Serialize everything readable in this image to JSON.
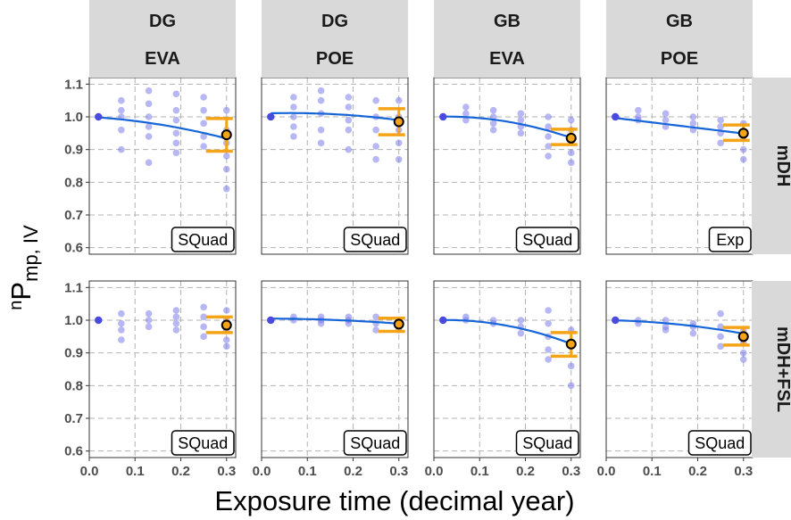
{
  "chart_data": {
    "type": "scatter",
    "description_labels": {
      "xlabel": "Exposure time (decimal year)",
      "ylabel_prefix": "n",
      "ylabel_main": "P",
      "ylabel_sub": "mp, IV"
    },
    "xlim": [
      0,
      0.32
    ],
    "ylim": [
      0.58,
      1.12
    ],
    "x_ticks": [
      0.0,
      0.1,
      0.2,
      0.3
    ],
    "x_tick_labels": [
      "0.0",
      "0.1",
      "0.2",
      "0.3"
    ],
    "y_ticks": [
      0.6,
      0.7,
      0.8,
      0.9,
      1.0,
      1.1
    ],
    "y_tick_labels": [
      "0.6",
      "0.7",
      "0.8",
      "0.9",
      "1.0",
      "1.1"
    ],
    "columns": [
      {
        "top": "DG",
        "bottom": "EVA"
      },
      {
        "top": "DG",
        "bottom": "POE"
      },
      {
        "top": "GB",
        "bottom": "EVA"
      },
      {
        "top": "GB",
        "bottom": "POE"
      }
    ],
    "rows": [
      "mDH",
      "mDH+FSL"
    ],
    "colors": {
      "points": "#7b7bea",
      "fit": "#1565d8",
      "interval": "#f5a418",
      "strip_bg": "#d9d9d9",
      "grid": "#b3b3b3"
    },
    "panels": [
      {
        "row": 0,
        "col": 0,
        "model": "SQuad",
        "points": [
          [
            0.02,
            1.0
          ],
          [
            0.07,
            1.05
          ],
          [
            0.07,
            1.02
          ],
          [
            0.07,
            1.0
          ],
          [
            0.07,
            0.96
          ],
          [
            0.07,
            0.9
          ],
          [
            0.13,
            1.08
          ],
          [
            0.13,
            1.04
          ],
          [
            0.13,
            1.0
          ],
          [
            0.13,
            0.97
          ],
          [
            0.13,
            0.94
          ],
          [
            0.13,
            0.86
          ],
          [
            0.19,
            1.07
          ],
          [
            0.19,
            1.02
          ],
          [
            0.19,
            0.99
          ],
          [
            0.19,
            0.95
          ],
          [
            0.19,
            0.92
          ],
          [
            0.19,
            0.89
          ],
          [
            0.25,
            1.06
          ],
          [
            0.25,
            1.02
          ],
          [
            0.25,
            0.98
          ],
          [
            0.25,
            0.94
          ],
          [
            0.25,
            0.91
          ],
          [
            0.3,
            1.02
          ],
          [
            0.3,
            0.96
          ],
          [
            0.3,
            0.92
          ],
          [
            0.3,
            0.88
          ],
          [
            0.3,
            0.84
          ],
          [
            0.3,
            0.78
          ]
        ],
        "curve": [
          1.0,
          -0.08,
          -0.47
        ],
        "fit_point": [
          0.3,
          0.945
        ],
        "interval": [
          0.895,
          0.995
        ]
      },
      {
        "row": 0,
        "col": 1,
        "model": "SQuad",
        "points": [
          [
            0.02,
            1.0
          ],
          [
            0.07,
            1.06
          ],
          [
            0.07,
            1.03
          ],
          [
            0.07,
            1.0
          ],
          [
            0.07,
            0.97
          ],
          [
            0.07,
            0.94
          ],
          [
            0.13,
            1.08
          ],
          [
            0.13,
            1.05
          ],
          [
            0.13,
            1.01
          ],
          [
            0.13,
            0.96
          ],
          [
            0.13,
            0.92
          ],
          [
            0.19,
            1.06
          ],
          [
            0.19,
            1.03
          ],
          [
            0.19,
            0.99
          ],
          [
            0.19,
            0.96
          ],
          [
            0.19,
            0.9
          ],
          [
            0.25,
            1.05
          ],
          [
            0.25,
            1.0
          ],
          [
            0.25,
            0.96
          ],
          [
            0.25,
            0.91
          ],
          [
            0.25,
            0.87
          ],
          [
            0.3,
            1.05
          ],
          [
            0.3,
            1.0
          ],
          [
            0.3,
            0.96
          ],
          [
            0.3,
            0.92
          ],
          [
            0.3,
            0.87
          ]
        ],
        "curve": [
          1.01,
          0.05,
          -0.39
        ],
        "fit_point": [
          0.3,
          0.985
        ],
        "interval": [
          0.945,
          1.025
        ]
      },
      {
        "row": 0,
        "col": 2,
        "model": "SQuad",
        "points": [
          [
            0.02,
            1.0
          ],
          [
            0.07,
            1.03
          ],
          [
            0.07,
            1.01
          ],
          [
            0.07,
            0.99
          ],
          [
            0.13,
            1.02
          ],
          [
            0.13,
            1.0
          ],
          [
            0.13,
            0.98
          ],
          [
            0.13,
            0.96
          ],
          [
            0.19,
            1.01
          ],
          [
            0.19,
            0.99
          ],
          [
            0.19,
            0.97
          ],
          [
            0.19,
            0.95
          ],
          [
            0.25,
            1.0
          ],
          [
            0.25,
            0.97
          ],
          [
            0.25,
            0.94
          ],
          [
            0.25,
            0.91
          ],
          [
            0.25,
            0.88
          ],
          [
            0.3,
            0.99
          ],
          [
            0.3,
            0.96
          ],
          [
            0.3,
            0.93
          ],
          [
            0.3,
            0.89
          ],
          [
            0.3,
            0.86
          ]
        ],
        "curve": [
          1.0,
          0.05,
          -0.88
        ],
        "fit_point": [
          0.3,
          0.935
        ],
        "interval": [
          0.915,
          0.962
        ]
      },
      {
        "row": 0,
        "col": 3,
        "model": "Exp",
        "points": [
          [
            0.02,
            1.0
          ],
          [
            0.07,
            1.02
          ],
          [
            0.07,
            1.0
          ],
          [
            0.07,
            0.99
          ],
          [
            0.13,
            1.01
          ],
          [
            0.13,
            0.99
          ],
          [
            0.13,
            0.97
          ],
          [
            0.19,
            1.0
          ],
          [
            0.19,
            0.98
          ],
          [
            0.19,
            0.96
          ],
          [
            0.25,
            0.99
          ],
          [
            0.25,
            0.97
          ],
          [
            0.25,
            0.95
          ],
          [
            0.25,
            0.92
          ],
          [
            0.3,
            0.98
          ],
          [
            0.3,
            0.94
          ],
          [
            0.3,
            0.9
          ],
          [
            0.3,
            0.87
          ]
        ],
        "curve": [
          1.0,
          -0.17,
          0.0
        ],
        "fit_point": [
          0.3,
          0.95
        ],
        "interval": [
          0.928,
          0.975
        ]
      },
      {
        "row": 1,
        "col": 0,
        "model": "SQuad",
        "points": [
          [
            0.02,
            1.0
          ],
          [
            0.07,
            1.02
          ],
          [
            0.07,
            0.99
          ],
          [
            0.07,
            0.97
          ],
          [
            0.07,
            0.94
          ],
          [
            0.13,
            1.02
          ],
          [
            0.13,
            1.0
          ],
          [
            0.13,
            0.98
          ],
          [
            0.19,
            1.03
          ],
          [
            0.19,
            1.01
          ],
          [
            0.19,
            0.99
          ],
          [
            0.19,
            0.97
          ],
          [
            0.25,
            1.04
          ],
          [
            0.25,
            1.01
          ],
          [
            0.25,
            0.98
          ],
          [
            0.25,
            0.95
          ],
          [
            0.3,
            1.03
          ],
          [
            0.3,
            1.0
          ],
          [
            0.3,
            0.97
          ],
          [
            0.3,
            0.94
          ],
          [
            0.3,
            0.92
          ]
        ],
        "curve": null,
        "fit_point": [
          0.3,
          0.985
        ],
        "interval": [
          0.962,
          1.01
        ]
      },
      {
        "row": 1,
        "col": 1,
        "model": "SQuad",
        "points": [
          [
            0.02,
            1.0
          ],
          [
            0.07,
            1.01
          ],
          [
            0.07,
            1.0
          ],
          [
            0.13,
            1.01
          ],
          [
            0.13,
            1.0
          ],
          [
            0.13,
            0.99
          ],
          [
            0.19,
            1.01
          ],
          [
            0.19,
            1.0
          ],
          [
            0.19,
            0.99
          ],
          [
            0.25,
            1.01
          ],
          [
            0.25,
            0.99
          ],
          [
            0.25,
            0.97
          ],
          [
            0.3,
            1.0
          ],
          [
            0.3,
            0.98
          ],
          [
            0.3,
            0.97
          ]
        ],
        "curve": [
          1.005,
          0.0,
          -0.17
        ],
        "fit_point": [
          0.3,
          0.988
        ],
        "interval": [
          0.966,
          1.006
        ]
      },
      {
        "row": 1,
        "col": 2,
        "model": "SQuad",
        "points": [
          [
            0.02,
            1.0
          ],
          [
            0.07,
            1.01
          ],
          [
            0.07,
            1.0
          ],
          [
            0.13,
            1.0
          ],
          [
            0.13,
            0.99
          ],
          [
            0.19,
            1.0
          ],
          [
            0.19,
            0.98
          ],
          [
            0.19,
            0.96
          ],
          [
            0.25,
            1.03
          ],
          [
            0.25,
            0.99
          ],
          [
            0.25,
            0.95
          ],
          [
            0.25,
            0.91
          ],
          [
            0.25,
            0.88
          ],
          [
            0.3,
            0.97
          ],
          [
            0.3,
            0.92
          ],
          [
            0.3,
            0.86
          ],
          [
            0.3,
            0.8
          ]
        ],
        "curve": [
          1.0,
          0.05,
          -0.97
        ],
        "fit_point": [
          0.3,
          0.927
        ],
        "interval": [
          0.89,
          0.962
        ]
      },
      {
        "row": 1,
        "col": 3,
        "model": "SQuad",
        "points": [
          [
            0.02,
            1.0
          ],
          [
            0.07,
            1.0
          ],
          [
            0.07,
            0.99
          ],
          [
            0.13,
            1.0
          ],
          [
            0.13,
            0.98
          ],
          [
            0.13,
            0.97
          ],
          [
            0.19,
            0.99
          ],
          [
            0.19,
            0.98
          ],
          [
            0.19,
            0.96
          ],
          [
            0.25,
            1.02
          ],
          [
            0.25,
            0.98
          ],
          [
            0.25,
            0.95
          ],
          [
            0.25,
            0.92
          ],
          [
            0.3,
            0.97
          ],
          [
            0.3,
            0.93
          ],
          [
            0.3,
            0.9
          ],
          [
            0.3,
            0.88
          ]
        ],
        "curve": [
          1.0,
          -0.02,
          -0.39
        ],
        "fit_point": [
          0.3,
          0.95
        ],
        "interval": [
          0.924,
          0.978
        ]
      }
    ]
  }
}
